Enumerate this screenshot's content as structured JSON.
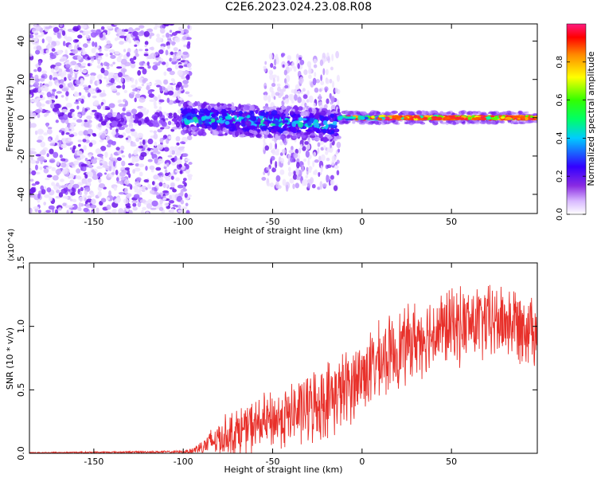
{
  "title": "C2E6.2023.024.23.08.R08",
  "chart_data": [
    {
      "type": "heatmap",
      "xlabel": "Height of straight line (km)",
      "ylabel": "Frequency (Hz)",
      "xlim": [
        -186,
        98
      ],
      "ylim": [
        -50,
        49
      ],
      "xticks": [
        -150,
        -100,
        -50,
        0,
        50
      ],
      "yticks": [
        -40,
        -20,
        0,
        20,
        40
      ],
      "colorbar": {
        "label": "Normalized spectral amplitude",
        "range": [
          0,
          1
        ],
        "ticks": [
          0.0,
          0.2,
          0.4,
          0.6,
          0.8
        ]
      },
      "regions": [
        {
          "x_range": [
            -186,
            -100
          ],
          "freq_spread": [
            -50,
            49
          ],
          "amplitude": "low, scattered"
        },
        {
          "x_range": [
            -100,
            -13
          ],
          "freq_spread": [
            -10,
            6
          ],
          "amplitude": "medium, band near 0 Hz drifting to -4 Hz"
        },
        {
          "x_range": [
            -55,
            -13
          ],
          "freq_spread": [
            -37,
            33
          ],
          "amplitude": "low, scattered"
        },
        {
          "x_range": [
            -13,
            98
          ],
          "freq_spread": [
            -3,
            3
          ],
          "amplitude": "high, narrow line at 0 Hz"
        }
      ]
    },
    {
      "type": "line",
      "xlabel": "Height of straight line (km)",
      "ylabel": "SNR (10 * v/v)",
      "y_multiplier": "(x10^4)",
      "xlim": [
        -186,
        98
      ],
      "ylim": [
        0,
        1.5
      ],
      "xticks": [
        -150,
        -100,
        -50,
        0,
        50
      ],
      "yticks": [
        0.0,
        0.5,
        1.0,
        1.5
      ],
      "series": [
        {
          "color": "#e8302a",
          "envelope_x": [
            -186,
            -150,
            -100,
            -95,
            -90,
            -80,
            -70,
            -60,
            -50,
            -40,
            -30,
            -20,
            -10,
            0,
            10,
            20,
            30,
            40,
            50,
            60,
            70,
            80,
            90,
            98
          ],
          "envelope_mean": [
            0.005,
            0.008,
            0.012,
            0.02,
            0.05,
            0.12,
            0.17,
            0.22,
            0.26,
            0.3,
            0.36,
            0.42,
            0.5,
            0.62,
            0.72,
            0.82,
            0.9,
            0.96,
            1.0,
            1.02,
            1.03,
            1.04,
            1.02,
            1.0
          ],
          "envelope_amp": [
            0.005,
            0.006,
            0.01,
            0.03,
            0.07,
            0.16,
            0.2,
            0.22,
            0.24,
            0.27,
            0.3,
            0.32,
            0.32,
            0.32,
            0.32,
            0.32,
            0.32,
            0.32,
            0.32,
            0.32,
            0.32,
            0.32,
            0.32,
            0.32
          ]
        }
      ]
    }
  ]
}
